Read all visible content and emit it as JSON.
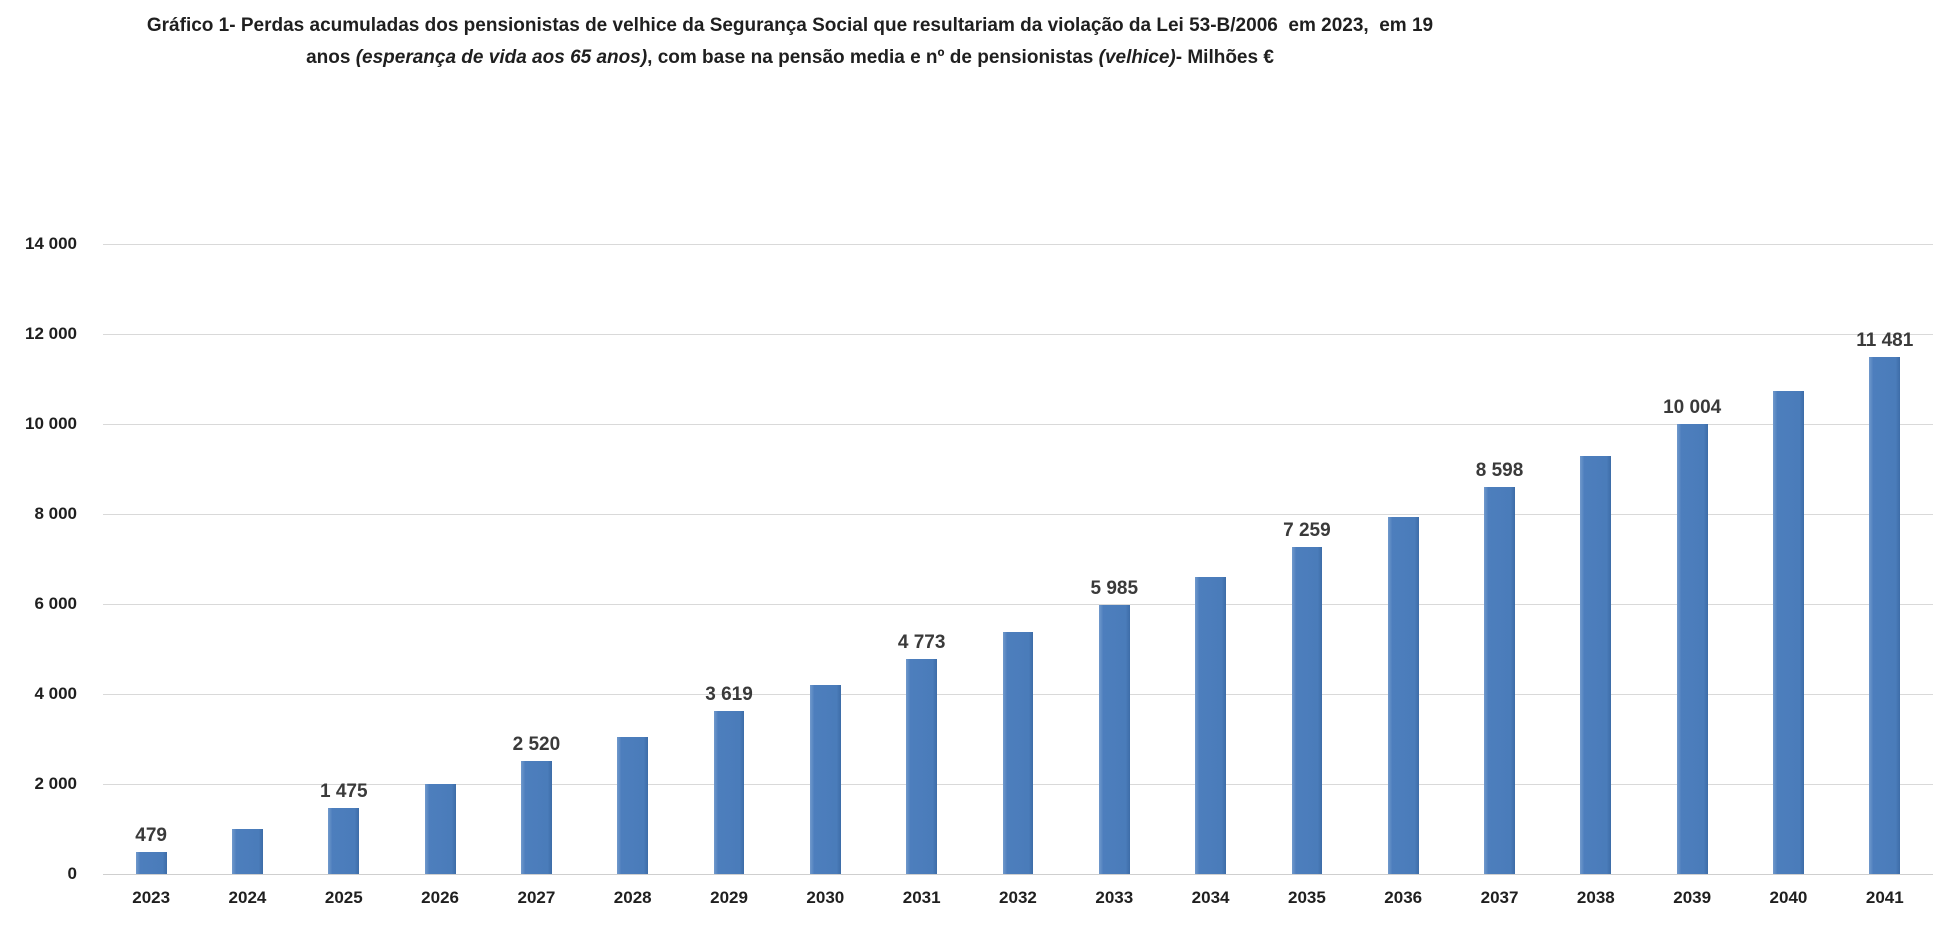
{
  "title": {
    "runs": [
      {
        "text": "Gráfico 1- Perdas acumuladas dos pensionistas de velhice da Segurança Social que resultariam da violação da Lei 53-B/2006  em 2023,  em 19",
        "italic": false
      },
      {
        "br": true
      },
      {
        "text": "anos ",
        "italic": false
      },
      {
        "text": "(esperança de vida aos 65 anos)",
        "italic": true
      },
      {
        "text": ", com base na pensão media e nº de pensionistas ",
        "italic": false
      },
      {
        "text": "(velhice)",
        "italic": true
      },
      {
        "text": "- Milhões €",
        "italic": false
      }
    ]
  },
  "chart_data": {
    "type": "bar",
    "title": "Gráfico 1- Perdas acumuladas dos pensionistas de velhice da Segurança Social que resultariam da violação da Lei 53-B/2006 em 2023, em 19 anos (esperança de vida aos 65 anos), com base na pensão media e nº de pensionistas (velhice)- Milhões €",
    "xlabel": "",
    "ylabel": "",
    "categories": [
      "2023",
      "2024",
      "2025",
      "2026",
      "2027",
      "2028",
      "2029",
      "2030",
      "2031",
      "2032",
      "2033",
      "2034",
      "2035",
      "2036",
      "2037",
      "2038",
      "2039",
      "2040",
      "2041"
    ],
    "values": [
      479,
      1000,
      1475,
      2000,
      2520,
      3050,
      3619,
      4200,
      4773,
      5370,
      5985,
      6600,
      7259,
      7930,
      8598,
      9300,
      10004,
      10740,
      11481
    ],
    "data_labels": [
      "479",
      "",
      "1 475",
      "",
      "2 520",
      "",
      "3 619",
      "",
      "4 773",
      "",
      "5 985",
      "",
      "7 259",
      "",
      "8 598",
      "",
      "10 004",
      "",
      "11 481"
    ],
    "ylim": [
      0,
      14000
    ],
    "y_ticks": [
      0,
      2000,
      4000,
      6000,
      8000,
      10000,
      12000,
      14000
    ],
    "y_tick_labels": [
      "0",
      "2 000",
      "4 000",
      "6 000",
      "8 000",
      "10 000",
      "12 000",
      "14 000"
    ],
    "grid": true,
    "legend": false,
    "bar_color": "#4d7ebd",
    "gridline_color": "#d9d9d9",
    "label_color": "#3a3a3a",
    "axis_text_color": "#1f1f1f"
  }
}
